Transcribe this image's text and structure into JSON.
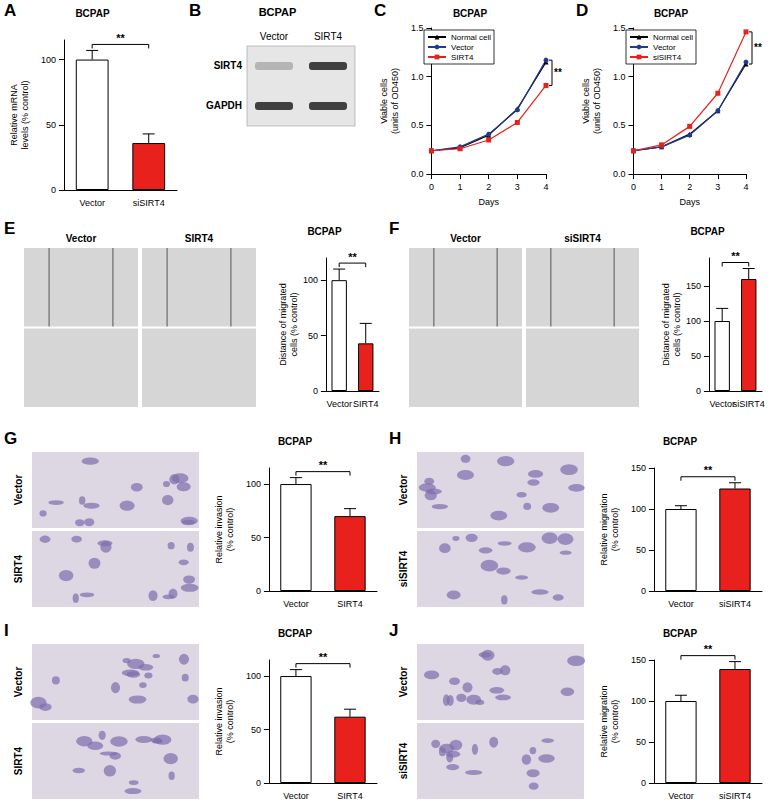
{
  "chart_data": [
    {
      "panel": "A",
      "type": "bar",
      "title": "BCPAP",
      "ylabel": "Relative mRNA\nlevels (% control)",
      "categories": [
        "Vector",
        "siSIRT4"
      ],
      "values": [
        100,
        36
      ],
      "errors": [
        7,
        7
      ],
      "colors": [
        "#ffffff",
        "#e8211d"
      ],
      "ylim": [
        0,
        115
      ],
      "yticks": [
        0,
        50,
        100
      ],
      "grid": false,
      "annotations": [
        "**"
      ]
    },
    {
      "panel": "C",
      "type": "line",
      "title": "BCPAP",
      "xlabel": "Days",
      "ylabel": "Viable cells\n(units of OD450)",
      "x": [
        0,
        1,
        2,
        3,
        4
      ],
      "series": [
        {
          "name": "Normal cell",
          "color": "#000000",
          "marker": "triangle",
          "values": [
            0.24,
            0.27,
            0.4,
            0.67,
            1.15
          ]
        },
        {
          "name": "Vector",
          "color": "#1f3a93",
          "marker": "circle",
          "values": [
            0.24,
            0.28,
            0.41,
            0.66,
            1.17
          ]
        },
        {
          "name": "SIRT4",
          "color": "#e8211d",
          "marker": "square",
          "values": [
            0.24,
            0.26,
            0.35,
            0.53,
            0.91
          ]
        }
      ],
      "xlim": [
        0,
        4
      ],
      "xticks": [
        0,
        1,
        2,
        3,
        4
      ],
      "ylim": [
        0,
        1.5
      ],
      "yticks": [
        {
          "value": 0,
          "label": "0.0"
        },
        0.5,
        {
          "value": 1,
          "label": "1.0"
        },
        1.5
      ],
      "legend": "top-left",
      "grid": false,
      "annotations": [
        "**"
      ]
    },
    {
      "panel": "D",
      "type": "line",
      "title": "BCPAP",
      "xlabel": "Days",
      "ylabel": "Viable cells\n(units of OD450)",
      "x": [
        0,
        1,
        2,
        3,
        4
      ],
      "series": [
        {
          "name": "Normal cell",
          "color": "#000000",
          "marker": "triangle",
          "values": [
            0.24,
            0.28,
            0.41,
            0.65,
            1.13
          ]
        },
        {
          "name": "Vector",
          "color": "#1f3a93",
          "marker": "circle",
          "values": [
            0.24,
            0.28,
            0.4,
            0.65,
            1.15
          ]
        },
        {
          "name": "siSIRT4",
          "color": "#e8211d",
          "marker": "square",
          "values": [
            0.24,
            0.3,
            0.49,
            0.83,
            1.46
          ]
        }
      ],
      "xlim": [
        0,
        4
      ],
      "xticks": [
        0,
        1,
        2,
        3,
        4
      ],
      "ylim": [
        0,
        1.5
      ],
      "yticks": [
        {
          "value": 0,
          "label": "0.0"
        },
        0.5,
        {
          "value": 1,
          "label": "1.0"
        },
        1.5
      ],
      "legend": "top-left",
      "grid": false,
      "annotations": [
        "**"
      ]
    },
    {
      "type": "bar",
      "title": "BCPAP",
      "ylabel": "Distance of migrated\ncells (% control)",
      "categories": [
        "Vector",
        "SIRT4"
      ],
      "values": [
        100,
        43
      ],
      "errors": [
        10,
        18
      ],
      "colors": [
        "#ffffff",
        "#e8211d"
      ],
      "ylim": [
        0,
        120
      ],
      "yticks": [
        0,
        50,
        100
      ],
      "grid": false,
      "annotations": [
        "**"
      ]
    },
    {
      "type": "bar",
      "title": "BCPAP",
      "ylabel": "Distance of migrated\ncells (% control)",
      "categories": [
        "Vector",
        "siSIRT4"
      ],
      "values": [
        100,
        160
      ],
      "errors": [
        18,
        15
      ],
      "colors": [
        "#ffffff",
        "#e8211d"
      ],
      "ylim": [
        0,
        190
      ],
      "yticks": [
        0,
        50,
        100,
        150
      ],
      "grid": false,
      "annotations": [
        "**"
      ]
    },
    {
      "type": "bar",
      "title": "BCPAP",
      "ylabel": "Relative invasion\n(% control)",
      "categories": [
        "Vector",
        "SIRT4"
      ],
      "values": [
        100,
        70
      ],
      "errors": [
        6,
        7
      ],
      "colors": [
        "#ffffff",
        "#e8211d"
      ],
      "ylim": [
        0,
        115
      ],
      "yticks": [
        0,
        50,
        100
      ],
      "grid": false,
      "annotations": [
        "**"
      ]
    },
    {
      "type": "bar",
      "title": "BCPAP",
      "ylabel": "Relative migration\n(% control)",
      "categories": [
        "Vector",
        "siSIRT4"
      ],
      "values": [
        100,
        125
      ],
      "errors": [
        4,
        7
      ],
      "colors": [
        "#ffffff",
        "#e8211d"
      ],
      "ylim": [
        0,
        150
      ],
      "yticks": [
        0,
        50,
        100,
        150
      ],
      "grid": false,
      "annotations": [
        "**"
      ]
    },
    {
      "type": "bar",
      "title": "BCPAP",
      "ylabel": "Relative invasion\n(% control)",
      "categories": [
        "Vector",
        "SIRT4"
      ],
      "values": [
        100,
        62
      ],
      "errors": [
        6,
        7
      ],
      "colors": [
        "#ffffff",
        "#e8211d"
      ],
      "ylim": [
        0,
        115
      ],
      "yticks": [
        0,
        50,
        100
      ],
      "grid": false,
      "annotations": [
        "**"
      ]
    },
    {
      "type": "bar",
      "title": "BCPAP",
      "ylabel": "Relative migration\n(% control)",
      "categories": [
        "Vector",
        "siSIRT4"
      ],
      "values": [
        100,
        139
      ],
      "errors": [
        7,
        9
      ],
      "colors": [
        "#ffffff",
        "#e8211d"
      ],
      "ylim": [
        0,
        150
      ],
      "yticks": [
        0,
        50,
        100,
        150
      ],
      "grid": false,
      "annotations": [
        "**"
      ]
    }
  ],
  "image_panels": [
    {
      "panel": "B",
      "title": "BCPAP",
      "columns": [
        "Vector",
        "SIRT4"
      ],
      "rows": [
        "SIRT4",
        "GAPDH"
      ]
    },
    {
      "panel": "E",
      "columns": [
        "Vector",
        "SIRT4"
      ]
    },
    {
      "panel": "F",
      "columns": [
        "Vector",
        "siSIRT4"
      ]
    },
    {
      "panel": "G",
      "rows": [
        "Vector",
        "SIRT4"
      ]
    },
    {
      "panel": "H",
      "rows": [
        "Vector",
        "siSIRT4"
      ]
    },
    {
      "panel": "I",
      "rows": [
        "Vector",
        "SIRT4"
      ]
    },
    {
      "panel": "J",
      "rows": [
        "Vector",
        "siSIRT4"
      ]
    }
  ]
}
